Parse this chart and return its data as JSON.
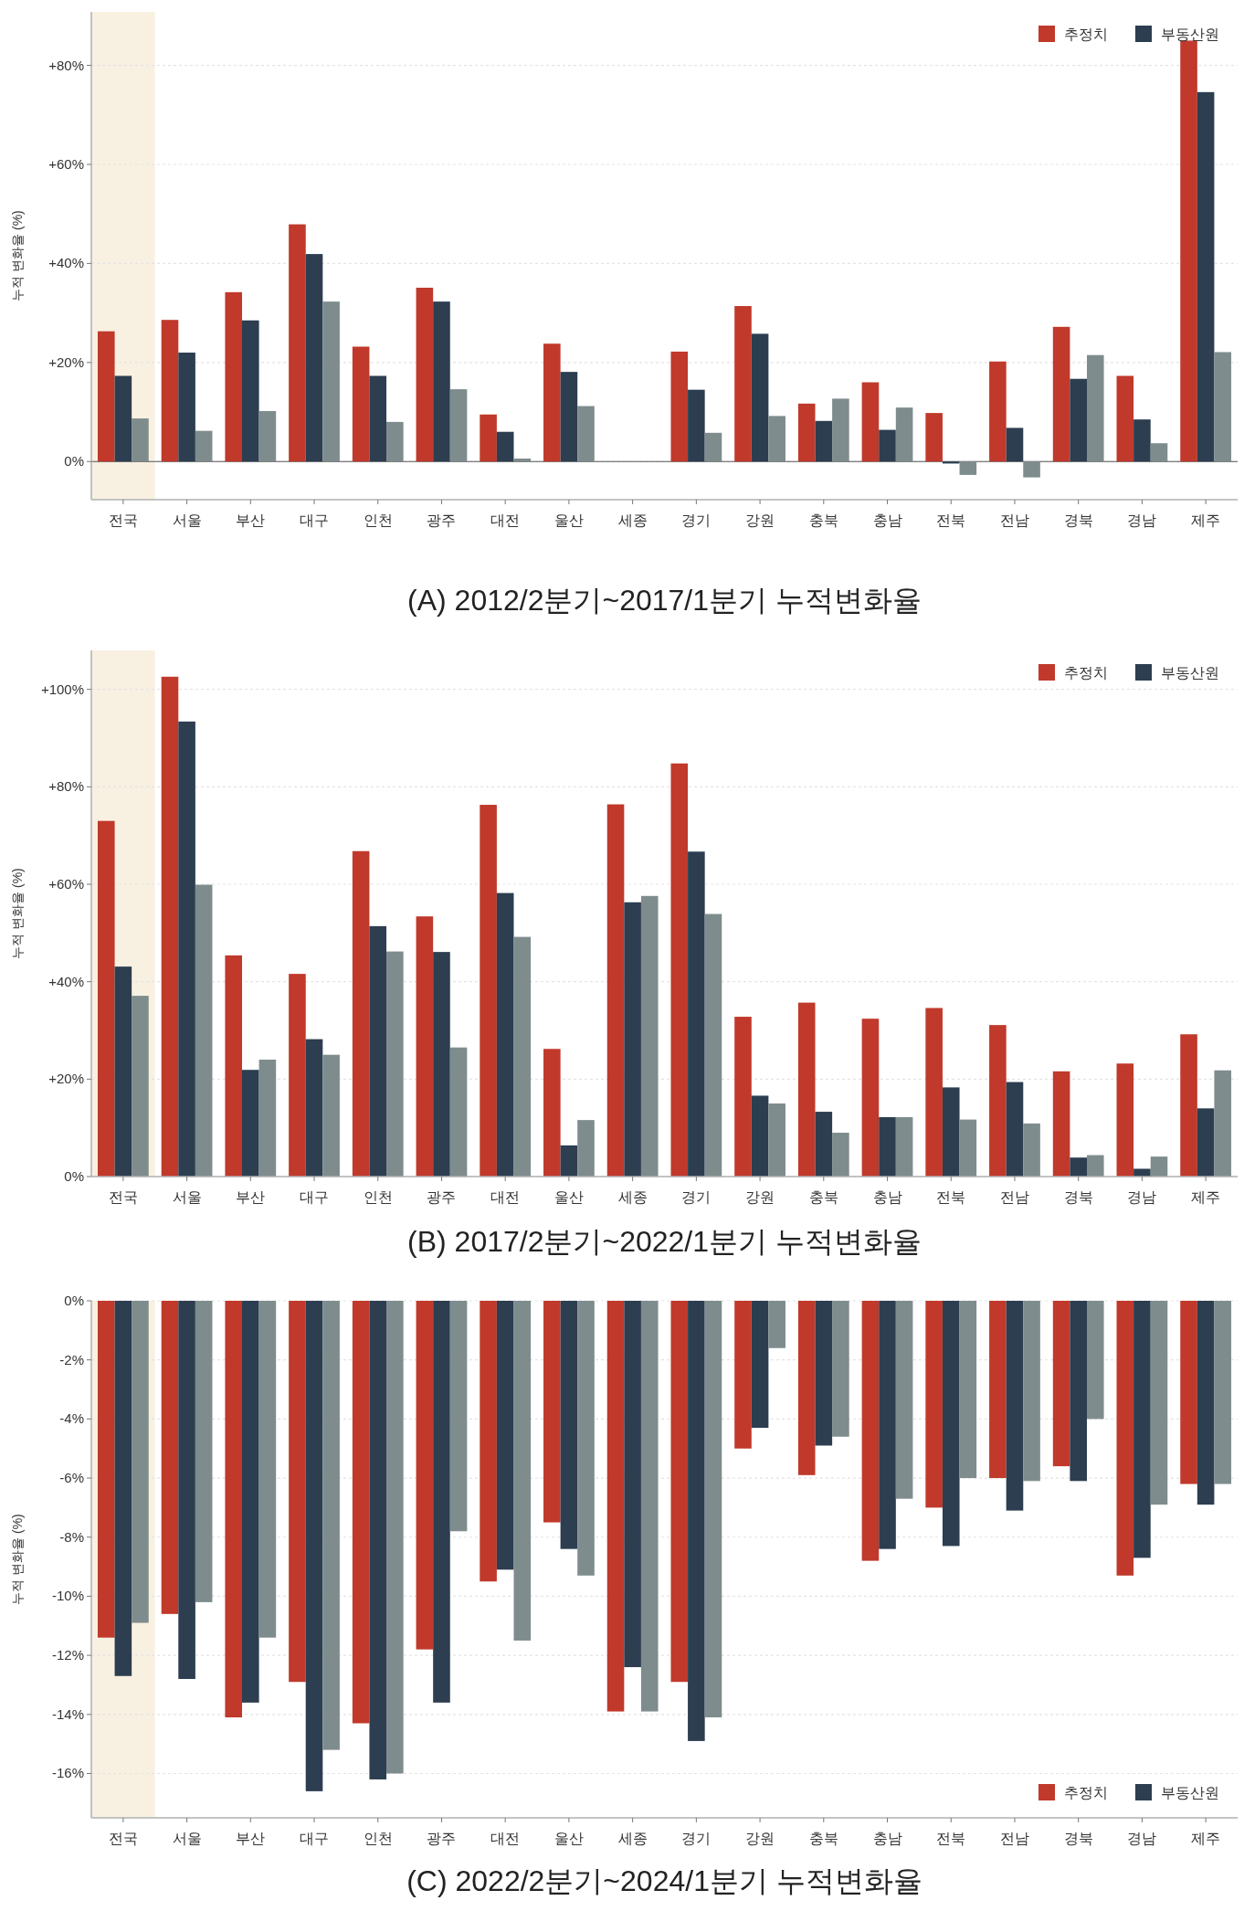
{
  "chart_data": [
    {
      "type": "bar",
      "title": "(A) 2012/2분기~2017/1분기 누적변화율",
      "ylabel": "누적 변화율 (%)",
      "categories": [
        "전국",
        "서울",
        "부산",
        "대구",
        "인천",
        "광주",
        "대전",
        "울산",
        "세종",
        "경기",
        "강원",
        "충북",
        "충남",
        "전북",
        "전남",
        "경북",
        "경남",
        "제주"
      ],
      "series": [
        {
          "name": "추정치",
          "color": "#c0392b",
          "values": [
            26.3,
            28.6,
            34.2,
            47.9,
            23.2,
            35.1,
            9.5,
            23.8,
            null,
            22.2,
            31.4,
            11.7,
            16.0,
            9.8,
            20.2,
            27.2,
            17.3,
            85.0
          ]
        },
        {
          "name": "부동산원",
          "color": "#2c3e50",
          "values": [
            17.3,
            22.0,
            28.5,
            41.9,
            17.3,
            32.3,
            6.0,
            18.1,
            null,
            14.5,
            25.8,
            8.2,
            6.4,
            -0.4,
            6.8,
            16.7,
            8.5,
            74.6
          ]
        },
        {
          "color": "#7f8c8d",
          "values": [
            8.7,
            6.2,
            10.2,
            32.3,
            8.0,
            14.6,
            0.6,
            11.2,
            null,
            5.8,
            9.2,
            12.7,
            10.9,
            -2.7,
            -3.2,
            21.5,
            3.7,
            22.1
          ]
        }
      ],
      "ylim": [
        -7.7,
        90.8
      ],
      "yticks": [
        {
          "value": 0,
          "label": "0%"
        },
        {
          "value": 20,
          "label": "+20%"
        },
        {
          "value": 40,
          "label": "+40%"
        },
        {
          "value": 60,
          "label": "+60%"
        },
        {
          "value": 80,
          "label": "+80%"
        }
      ],
      "grid": "y",
      "legend": "top right",
      "ref_lines": [
        {
          "axis": "y",
          "value": 0,
          "color": "#555555"
        }
      ],
      "bands": [
        {
          "axis": "x",
          "from": "전국",
          "to": "전국",
          "color": "#f8f1e1"
        }
      ]
    },
    {
      "type": "bar",
      "title": "(B) 2017/2분기~2022/1분기 누적변화율",
      "ylabel": "누적 변화율 (%)",
      "categories": [
        "전국",
        "서울",
        "부산",
        "대구",
        "인천",
        "광주",
        "대전",
        "울산",
        "세종",
        "경기",
        "강원",
        "충북",
        "충남",
        "전북",
        "전남",
        "경북",
        "경남",
        "제주"
      ],
      "series": [
        {
          "name": "추정치",
          "color": "#c0392b",
          "values": [
            73.0,
            102.6,
            45.4,
            41.6,
            66.8,
            53.4,
            76.3,
            26.2,
            76.4,
            84.8,
            32.8,
            35.7,
            32.4,
            34.6,
            31.1,
            21.6,
            23.2,
            29.2
          ]
        },
        {
          "name": "부동산원",
          "color": "#2c3e50",
          "values": [
            43.1,
            93.4,
            21.9,
            28.2,
            51.4,
            46.1,
            58.2,
            6.4,
            56.3,
            66.7,
            16.6,
            13.3,
            12.2,
            18.3,
            19.4,
            3.9,
            1.6,
            14.0
          ]
        },
        {
          "color": "#7f8c8d",
          "values": [
            37.1,
            59.9,
            24.0,
            25.0,
            46.2,
            26.5,
            49.2,
            11.6,
            57.6,
            53.9,
            15.0,
            9.0,
            12.2,
            11.7,
            10.9,
            4.4,
            4.1,
            21.8
          ]
        }
      ],
      "ylim": [
        0,
        108
      ],
      "yticks": [
        {
          "value": 0,
          "label": "0%"
        },
        {
          "value": 20,
          "label": "+20%"
        },
        {
          "value": 40,
          "label": "+40%"
        },
        {
          "value": 60,
          "label": "+60%"
        },
        {
          "value": 80,
          "label": "+80%"
        },
        {
          "value": 100,
          "label": "+100%"
        }
      ],
      "grid": "y",
      "legend": "top right",
      "bands": [
        {
          "axis": "x",
          "from": "전국",
          "to": "전국",
          "color": "#f8f1e1"
        }
      ]
    },
    {
      "type": "bar",
      "title": "(C) 2022/2분기~2024/1분기 누적변화율",
      "ylabel": "누적 변화율 (%)",
      "categories": [
        "전국",
        "서울",
        "부산",
        "대구",
        "인천",
        "광주",
        "대전",
        "울산",
        "세종",
        "경기",
        "강원",
        "충북",
        "충남",
        "전북",
        "전남",
        "경북",
        "경남",
        "제주"
      ],
      "series": [
        {
          "name": "추정치",
          "color": "#c0392b",
          "values": [
            -11.4,
            -10.6,
            -14.1,
            -12.9,
            -14.3,
            -11.8,
            -9.5,
            -7.5,
            -13.9,
            -12.9,
            -5.0,
            -5.9,
            -8.8,
            -7.0,
            -6.0,
            -5.6,
            -9.3,
            -6.2
          ]
        },
        {
          "name": "부동산원",
          "color": "#2c3e50",
          "values": [
            -12.7,
            -12.8,
            -13.6,
            -16.6,
            -16.2,
            -13.6,
            -9.1,
            -8.4,
            -12.4,
            -14.9,
            -4.3,
            -4.9,
            -8.4,
            -8.3,
            -7.1,
            -6.1,
            -8.7,
            -6.9
          ]
        },
        {
          "color": "#7f8c8d",
          "values": [
            -10.9,
            -10.2,
            -11.4,
            -15.2,
            -16.0,
            -7.8,
            -11.5,
            -9.3,
            -13.9,
            -14.1,
            -1.6,
            -4.6,
            -6.7,
            -6.0,
            -6.1,
            -4.0,
            -6.9,
            -6.2
          ]
        }
      ],
      "ylim": [
        -17.5,
        0
      ],
      "yticks": [
        {
          "value": 0,
          "label": "0%"
        },
        {
          "value": -2,
          "label": "-2%"
        },
        {
          "value": -4,
          "label": "-4%"
        },
        {
          "value": -6,
          "label": "-6%"
        },
        {
          "value": -8,
          "label": "-8%"
        },
        {
          "value": -10,
          "label": "-10%"
        },
        {
          "value": -12,
          "label": "-12%"
        },
        {
          "value": -14,
          "label": "-14%"
        },
        {
          "value": -16,
          "label": "-16%"
        }
      ],
      "grid": "y",
      "legend": "bottom right",
      "bands": [
        {
          "axis": "x",
          "from": "전국",
          "to": "전국",
          "color": "#f8f1e1"
        }
      ]
    }
  ]
}
